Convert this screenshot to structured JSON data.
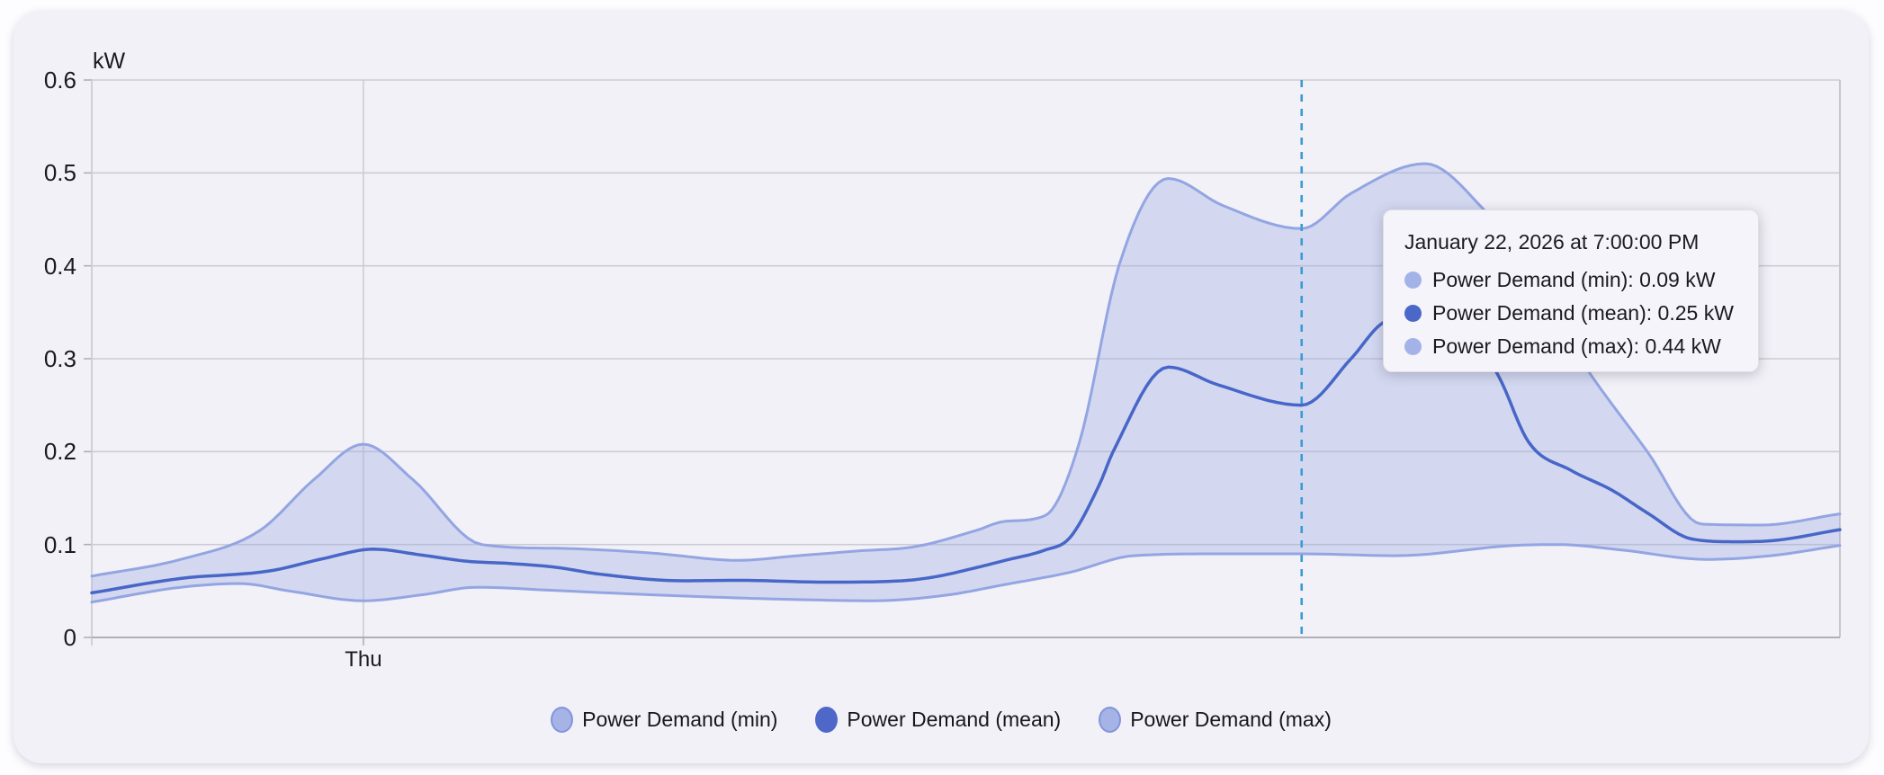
{
  "card": {
    "type": "statistics-graph-card"
  },
  "chart_data": {
    "type": "area",
    "title": "",
    "ylabel": "kW",
    "unit": "kW",
    "ylim": [
      0,
      0.6
    ],
    "ytick_labels": [
      "0",
      "0.1",
      "0.2",
      "0.3",
      "0.4",
      "0.5",
      "0.6"
    ],
    "ytick_values": [
      0,
      0.1,
      0.2,
      0.3,
      0.4,
      0.5,
      0.6
    ],
    "grid": true,
    "x_axis": {
      "kind": "time",
      "visible_tick_label": "Thu",
      "visible_tick_hour": 0,
      "window_hours_rel_thu_midnight": [
        -5.5,
        29.9
      ]
    },
    "legend_position": "bottom",
    "band": {
      "between": [
        "Power Demand (min)",
        "Power Demand (max)"
      ],
      "fill_color": "rgba(148,166,227,0.33)"
    },
    "cursor": {
      "hour": 19,
      "time_label": "7:00:00 PM",
      "color": "#3c9bd2"
    },
    "series": [
      {
        "name": "Power Demand (min)",
        "color": "#93a5e2",
        "line_width": 3,
        "points": [
          [
            -5.5,
            0.038
          ],
          [
            -3.7,
            0.054
          ],
          [
            -2.5,
            0.058
          ],
          [
            -1.5,
            0.05
          ],
          [
            0,
            0.0395
          ],
          [
            1.2,
            0.046
          ],
          [
            2.3,
            0.054
          ],
          [
            3.9,
            0.0505
          ],
          [
            5.8,
            0.046
          ],
          [
            7.6,
            0.0425
          ],
          [
            9.0,
            0.0405
          ],
          [
            10.3,
            0.0395
          ],
          [
            11.8,
            0.0455
          ],
          [
            13.0,
            0.057
          ],
          [
            14.3,
            0.07
          ],
          [
            15.6,
            0.088
          ],
          [
            17.3,
            0.09
          ],
          [
            19,
            0.09
          ],
          [
            20.9,
            0.088
          ],
          [
            23.3,
            0.099
          ],
          [
            24.2,
            0.1
          ],
          [
            25.5,
            0.094
          ],
          [
            27.2,
            0.084
          ],
          [
            28.5,
            0.088
          ],
          [
            29.9,
            0.099
          ]
        ]
      },
      {
        "name": "Power Demand (mean)",
        "color": "#4766c8",
        "line_width": 3.5,
        "points": [
          [
            -5.5,
            0.048
          ],
          [
            -3.7,
            0.0635
          ],
          [
            -1.9,
            0.0716
          ],
          [
            -0.8,
            0.085
          ],
          [
            0.2,
            0.095
          ],
          [
            1.2,
            0.0885
          ],
          [
            2.1,
            0.082
          ],
          [
            3.0,
            0.0795
          ],
          [
            3.9,
            0.0755
          ],
          [
            4.8,
            0.068
          ],
          [
            6.5,
            0.061
          ],
          [
            7.6,
            0.0615
          ],
          [
            9.4,
            0.0595
          ],
          [
            10.9,
            0.061
          ],
          [
            11.6,
            0.0655
          ],
          [
            12.4,
            0.075
          ],
          [
            13.0,
            0.083
          ],
          [
            13.8,
            0.094
          ],
          [
            14.3,
            0.107
          ],
          [
            14.9,
            0.164
          ],
          [
            15.2,
            0.202
          ],
          [
            16.3,
            0.291
          ],
          [
            17.3,
            0.272
          ],
          [
            19,
            0.25
          ],
          [
            20,
            0.3
          ],
          [
            20.6,
            0.337
          ],
          [
            21.6,
            0.355
          ],
          [
            22.4,
            0.33
          ],
          [
            23.0,
            0.28
          ],
          [
            23.6,
            0.21
          ],
          [
            24.45,
            0.18
          ],
          [
            25.3,
            0.158
          ],
          [
            26.0,
            0.134
          ],
          [
            26.9,
            0.106
          ],
          [
            27.8,
            0.103
          ],
          [
            28.5,
            0.104
          ],
          [
            29.9,
            0.116
          ]
        ]
      },
      {
        "name": "Power Demand (max)",
        "color": "#93a5e2",
        "line_width": 3,
        "points": [
          [
            -5.5,
            0.066
          ],
          [
            -3.7,
            0.084
          ],
          [
            -2.1,
            0.115
          ],
          [
            -1.0,
            0.17
          ],
          [
            0,
            0.208
          ],
          [
            1.0,
            0.17
          ],
          [
            2.4,
            0.1
          ],
          [
            3.9,
            0.096
          ],
          [
            5.8,
            0.091
          ],
          [
            7.6,
            0.083
          ],
          [
            8.8,
            0.088
          ],
          [
            10.0,
            0.093
          ],
          [
            11.2,
            0.098
          ],
          [
            12.4,
            0.115
          ],
          [
            13.0,
            0.125
          ],
          [
            13.8,
            0.131
          ],
          [
            14.5,
            0.21
          ],
          [
            15.3,
            0.4
          ],
          [
            16.3,
            0.494
          ],
          [
            17.4,
            0.465
          ],
          [
            19,
            0.44
          ],
          [
            20,
            0.478
          ],
          [
            21.5,
            0.51
          ],
          [
            22.7,
            0.46
          ],
          [
            23.6,
            0.4
          ],
          [
            24.4,
            0.32
          ],
          [
            26.0,
            0.2
          ],
          [
            27.1,
            0.122
          ],
          [
            28.3,
            0.121
          ],
          [
            29.9,
            0.133
          ]
        ]
      }
    ]
  },
  "tooltip": {
    "title": "January 22, 2026 at 7:00:00 PM",
    "rows": [
      {
        "dot_color": "#a4b3e7",
        "text": "Power Demand (min): 0.09 kW"
      },
      {
        "dot_color": "#4b67c8",
        "text": "Power Demand (mean): 0.25 kW"
      },
      {
        "dot_color": "#a4b3e7",
        "text": "Power Demand (max): 0.44 kW"
      }
    ]
  },
  "legend": {
    "items": [
      {
        "label": "Power Demand (min)",
        "fill": "#a5b3e6",
        "border": "#8295da"
      },
      {
        "label": "Power Demand (mean)",
        "fill": "#4d68c9",
        "border": "#4d68c9"
      },
      {
        "label": "Power Demand (max)",
        "fill": "#a5b3e6",
        "border": "#8295da"
      }
    ]
  },
  "colors": {
    "card_bg": "#f2f1f7",
    "page_bg": "#fdfdff",
    "gridline": "#cdccd4",
    "axis_line": "#b0afb9",
    "right_border": "#c3c2cb",
    "text": "#1a1a1f"
  }
}
